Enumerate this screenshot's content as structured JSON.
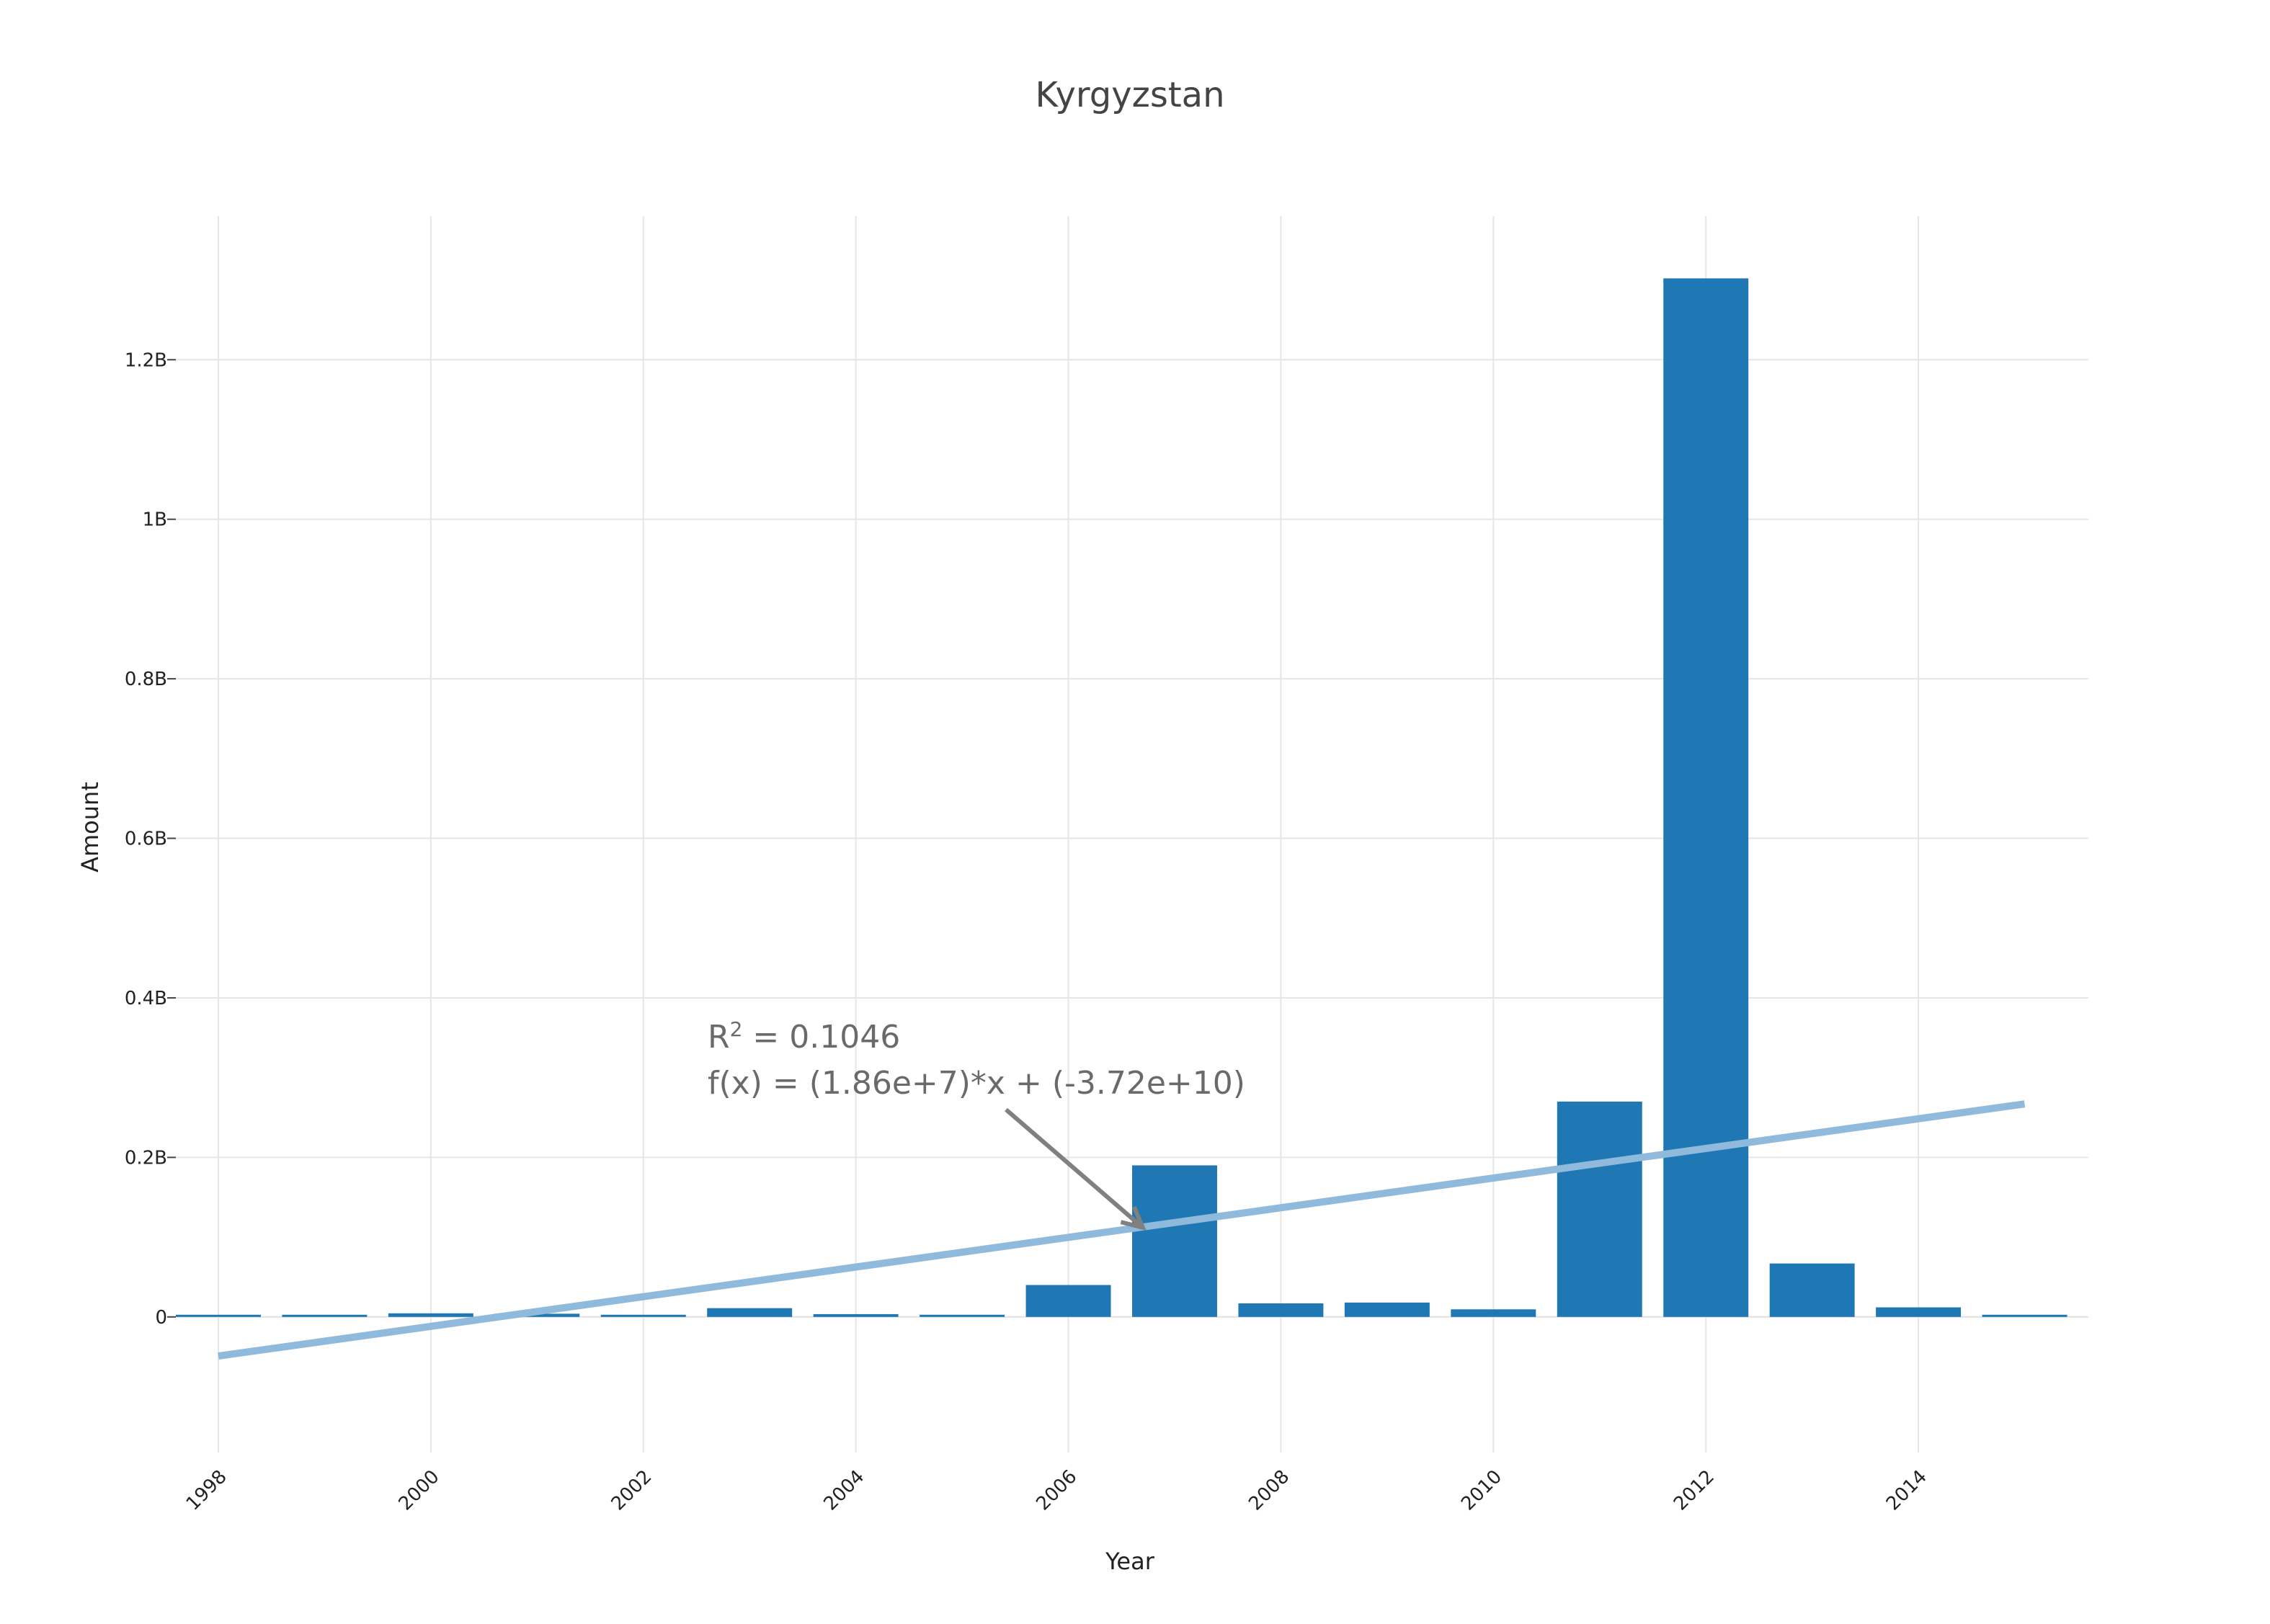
{
  "chart_data": {
    "type": "bar",
    "title": "Kyrgyzstan",
    "xlabel": "Year",
    "ylabel": "Amount",
    "xlim": [
      1997.6,
      2015.6
    ],
    "ylim": [
      -170000000,
      1380000000
    ],
    "x_ticks": [
      "1998",
      "2000",
      "2002",
      "2004",
      "2006",
      "2008",
      "2010",
      "2012",
      "2014"
    ],
    "y_ticks": [
      {
        "value": 0,
        "label": "0"
      },
      {
        "value": 200000000,
        "label": "0.2B"
      },
      {
        "value": 400000000,
        "label": "0.4B"
      },
      {
        "value": 600000000,
        "label": "0.6B"
      },
      {
        "value": 800000000,
        "label": "0.8B"
      },
      {
        "value": 1000000000,
        "label": "1B"
      },
      {
        "value": 1200000000,
        "label": "1.2B"
      }
    ],
    "grid": true,
    "x": [
      1998,
      1999,
      2000,
      2001,
      2002,
      2003,
      2004,
      2005,
      2006,
      2007,
      2008,
      2009,
      2010,
      2011,
      2012,
      2013,
      2014,
      2015
    ],
    "values": [
      500000,
      500000,
      4500000,
      4000000,
      500000,
      11000000,
      3500000,
      2000000,
      40000000,
      190000000,
      17000000,
      18000000,
      9500000,
      270000000,
      1302000000,
      67000000,
      12000000,
      2500000
    ],
    "bar_color": "#1f77b4",
    "trendline": {
      "x": [
        1998,
        2015
      ],
      "y": [
        -49000000,
        267000000
      ],
      "color": "#8fbadb"
    },
    "annotation": {
      "r2_prefix": "R",
      "r2_sup": "2",
      "r2_value": " = 0.1046",
      "equation": "f(x) = (1.86e+7)*x + (-3.72e+10)",
      "target_x": 2006.7,
      "target_y": 112000000,
      "arrow_color": "#808080",
      "text_color": "#6a6a6a"
    }
  }
}
